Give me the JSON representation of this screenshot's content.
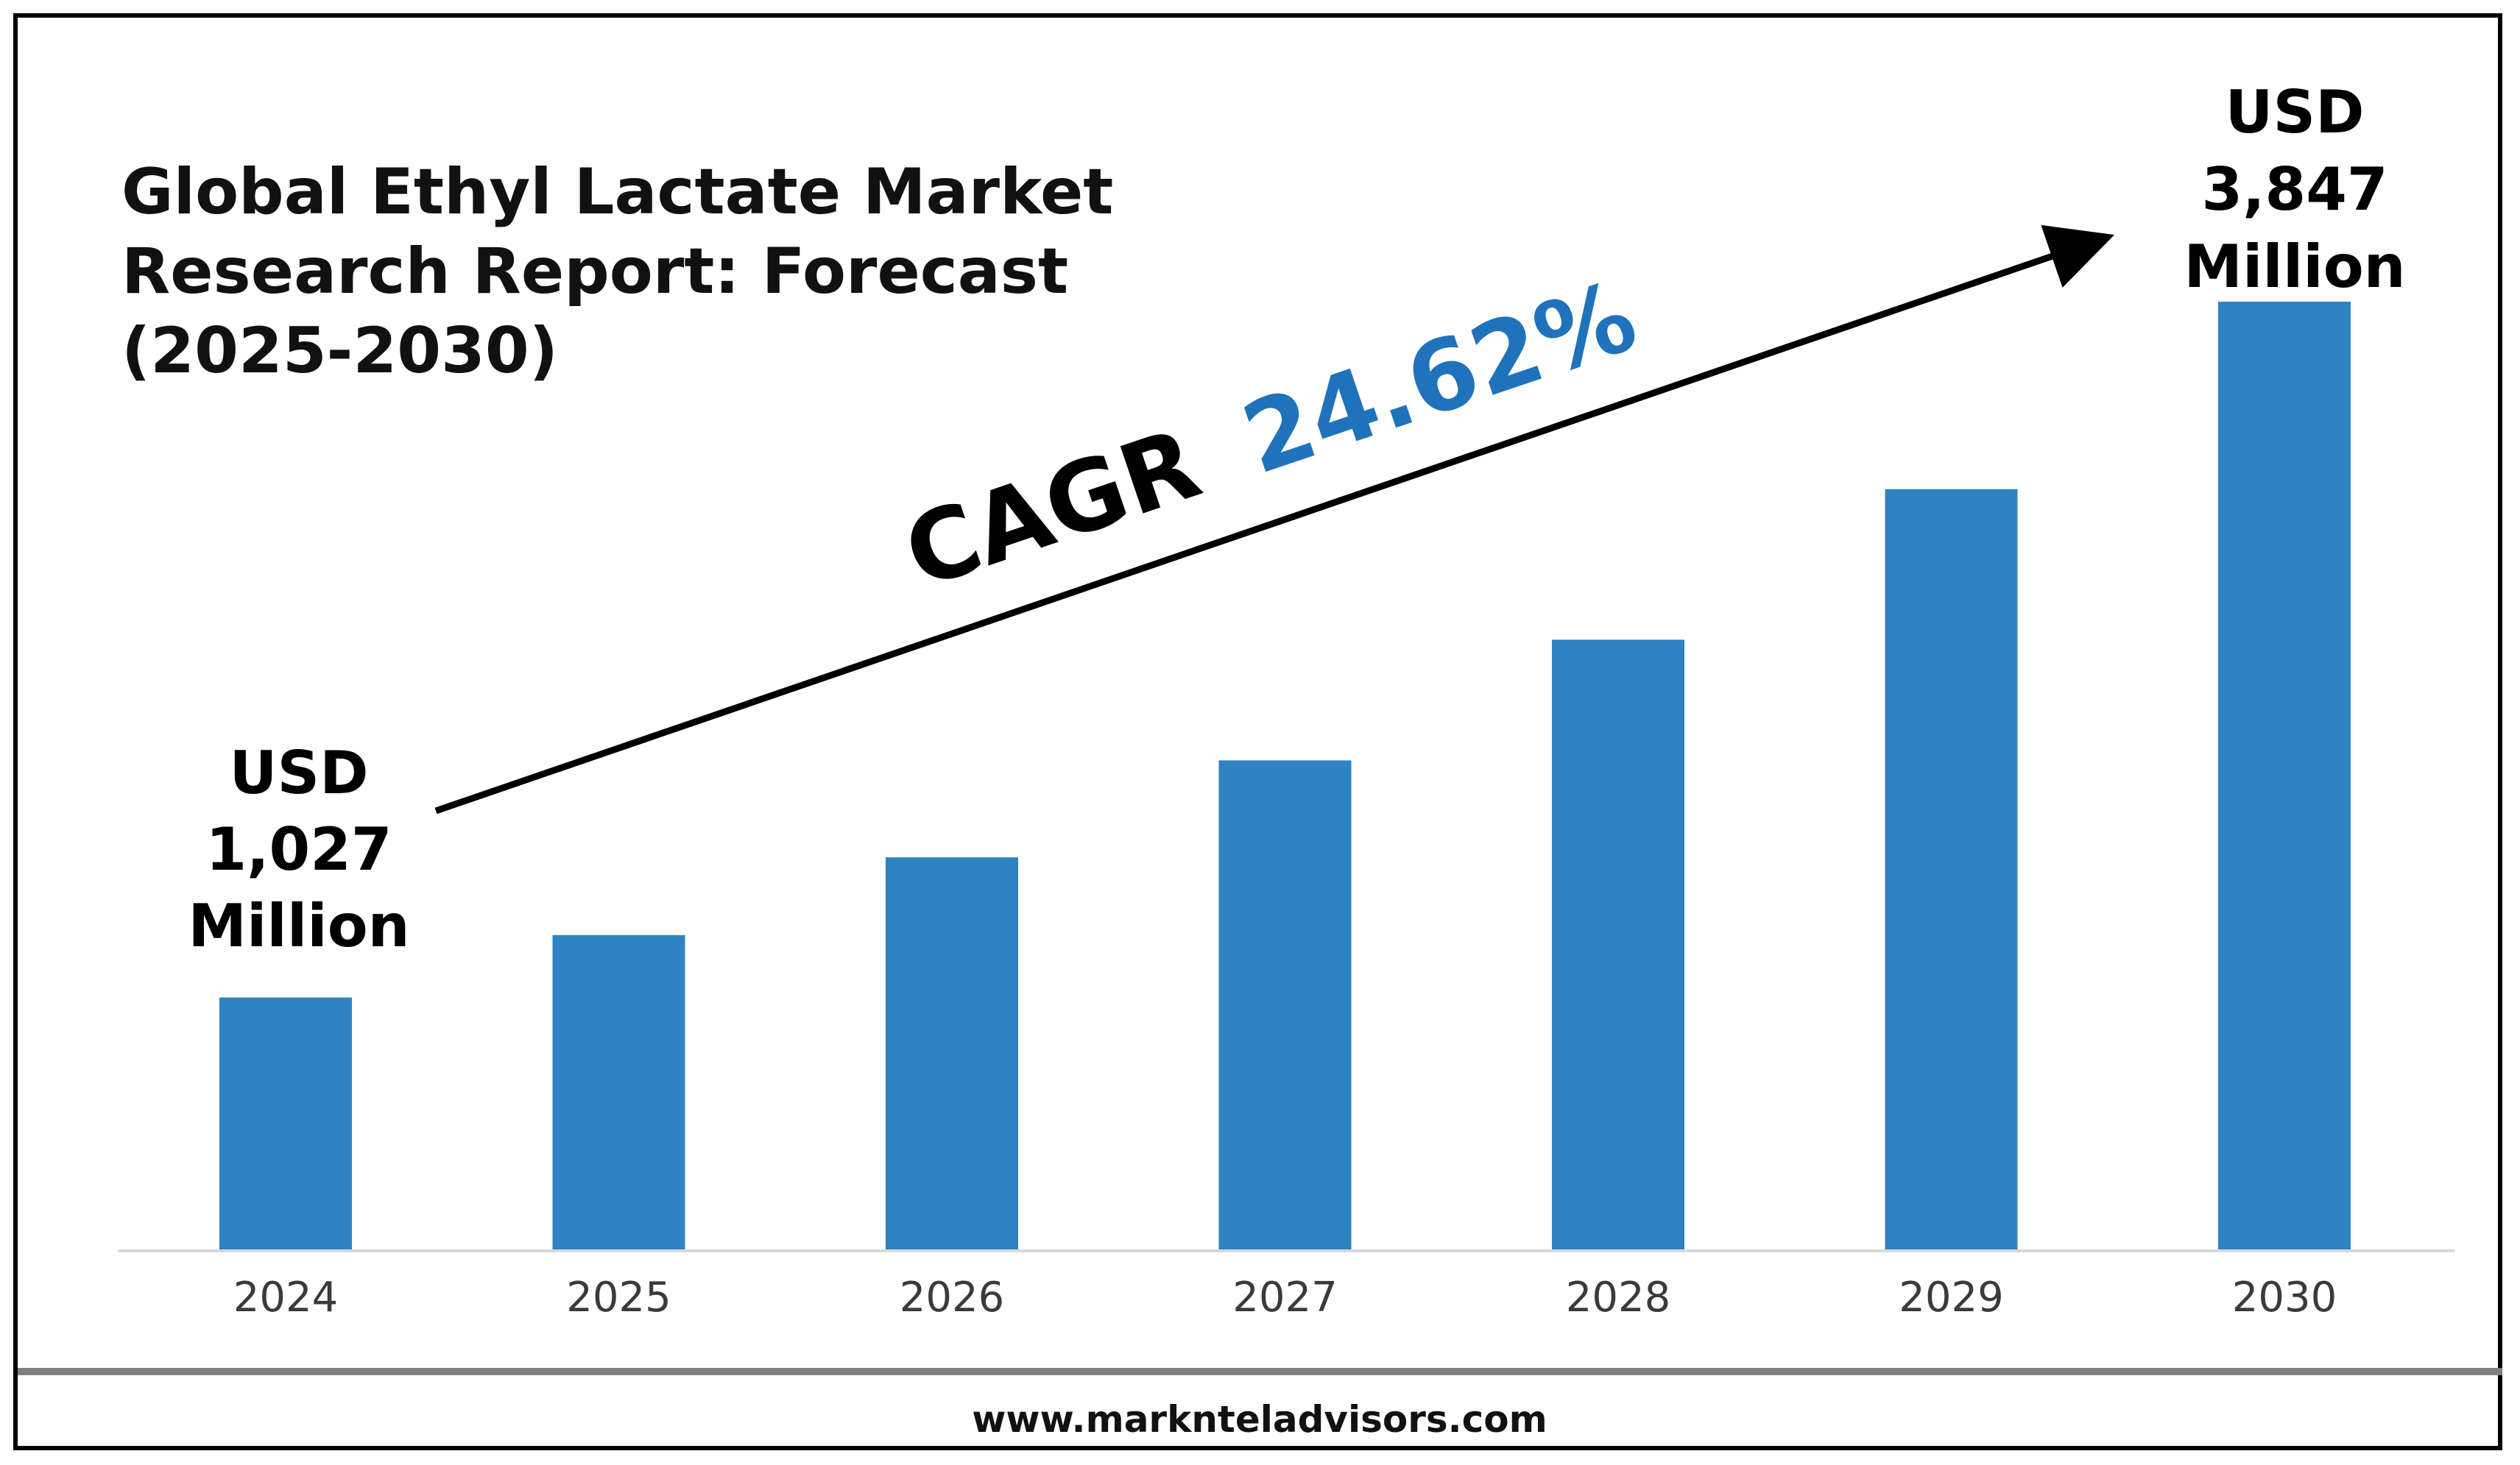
{
  "page": {
    "footer": "www.marknteladvisors.com"
  },
  "colors": {
    "bar": "#2E83C3",
    "cagr_value": "#1F73BA",
    "text": "#000000",
    "axis": "#D9D9D9",
    "footer_rule": "#7F7F7F"
  },
  "chart_data": {
    "type": "bar",
    "title_lines": [
      "Global Ethyl Lactate Market",
      "Research Report: Forecast",
      "(2025-2030)"
    ],
    "categories": [
      "2024",
      "2025",
      "2026",
      "2027",
      "2028",
      "2029",
      "2030"
    ],
    "values": [
      1027,
      1280,
      1595,
      1988,
      2477,
      3087,
      3847
    ],
    "ylim": [
      0,
      3847
    ],
    "xlabel": "",
    "ylabel": "",
    "grid": false,
    "legend": "none",
    "annotations": {
      "start": {
        "category": "2024",
        "lines": [
          "USD",
          "1,027",
          "Million"
        ]
      },
      "end": {
        "category": "2030",
        "lines": [
          "USD",
          "3,847",
          "Million"
        ]
      },
      "cagr": {
        "label": "CAGR",
        "value": "24.62%"
      }
    }
  }
}
